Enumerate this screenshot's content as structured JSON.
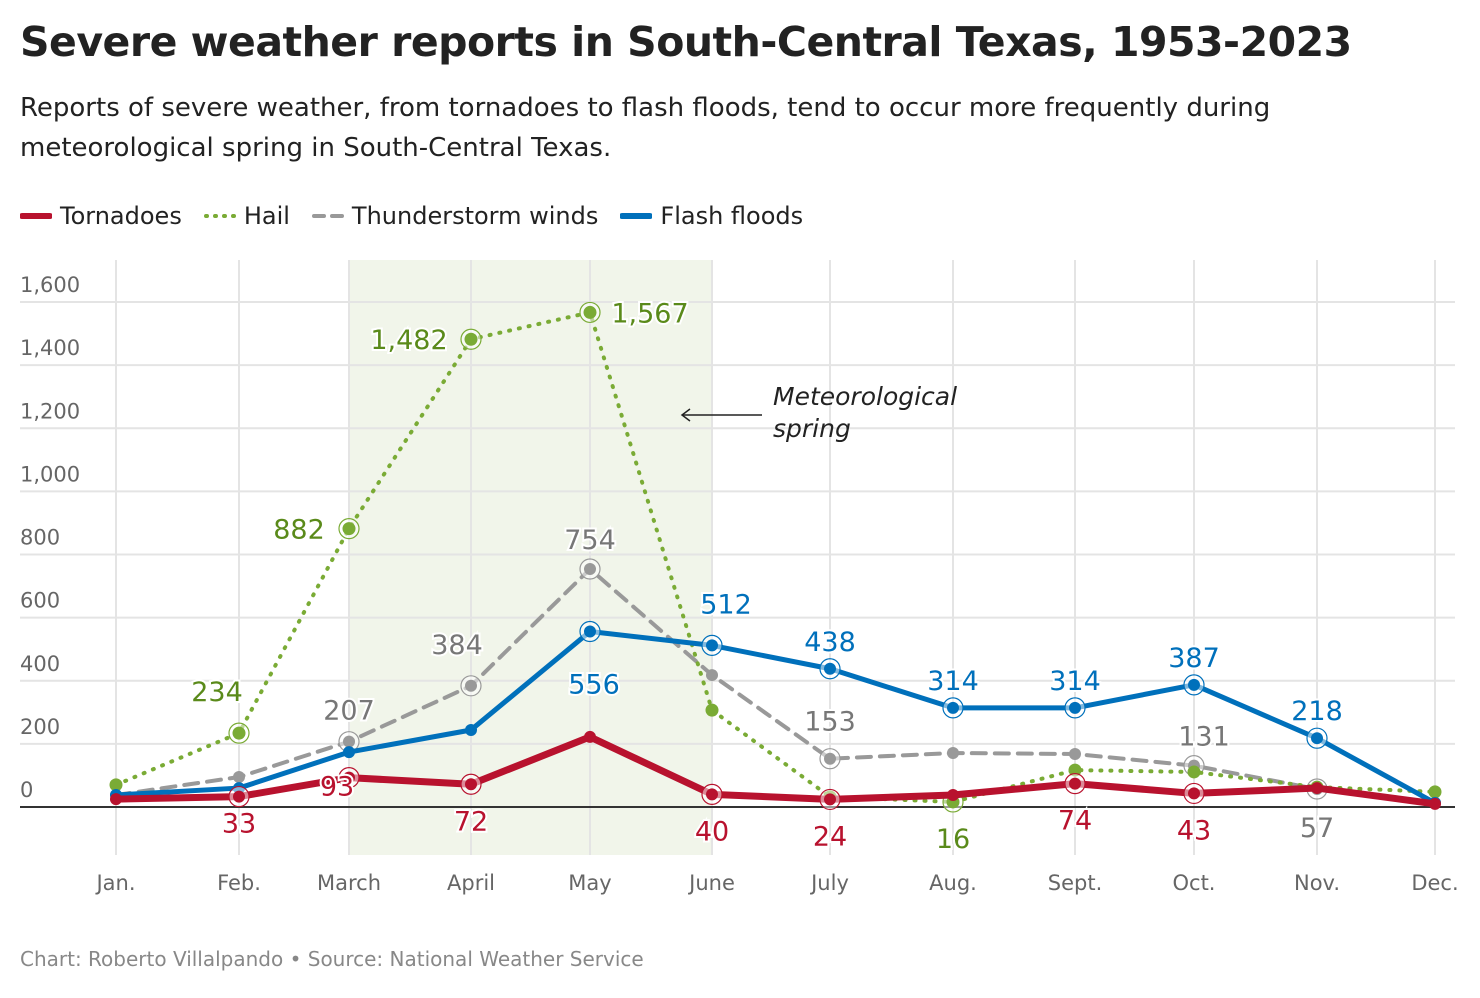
{
  "title": "Severe weather reports in South-Central Texas, 1953-2023",
  "subtitle": "Reports of severe weather, from tornadoes to flash floods, tend to occur more frequently during meteorological spring in South-Central Texas.",
  "footer": "Chart: Roberto Villalpando • Source: National Weather Service",
  "chart_data": {
    "type": "line",
    "categories": [
      "Jan.",
      "Feb.",
      "March",
      "April",
      "May",
      "June",
      "July",
      "Aug.",
      "Sept.",
      "Oct.",
      "Nov.",
      "Dec."
    ],
    "ylim": [
      0,
      1700
    ],
    "yticks": [
      0,
      200,
      400,
      600,
      800,
      1000,
      1200,
      1400,
      1600
    ],
    "ytick_labels": [
      "0",
      "200",
      "400",
      "600",
      "800",
      "1,000",
      "1,200",
      "1,400",
      "1,600"
    ],
    "grid": true,
    "legend_position": "top-left",
    "annotation": {
      "text_lines": [
        "Meteorological",
        "spring"
      ],
      "shaded_range": [
        "March",
        "June"
      ],
      "shade_color": "#f1f5ea"
    },
    "series": [
      {
        "name": "Tornadoes",
        "color": "#b8122e",
        "label_color": "#b8122e",
        "style": "solid",
        "values": [
          25,
          33,
          93,
          72,
          222,
          40,
          24,
          38,
          74,
          43,
          60,
          10
        ],
        "labeled": [
          1,
          2,
          3,
          5,
          6,
          8,
          9
        ]
      },
      {
        "name": "Hail",
        "color": "#7aab35",
        "label_color": "#5a8a1a",
        "style": "dotted",
        "values": [
          70,
          234,
          882,
          1482,
          1567,
          307,
          32,
          16,
          117,
          111,
          63,
          48
        ],
        "labeled": [
          1,
          2,
          3,
          4,
          7
        ]
      },
      {
        "name": "Thunderstorm winds",
        "color": "#999999",
        "label_color": "#777777",
        "style": "dashed",
        "values": [
          38,
          95,
          207,
          384,
          754,
          418,
          153,
          171,
          168,
          131,
          57,
          13
        ],
        "labeled": [
          2,
          3,
          4,
          6,
          9,
          10
        ]
      },
      {
        "name": "Flash floods",
        "color": "#0070bb",
        "label_color": "#0070bb",
        "style": "solid",
        "values": [
          38,
          60,
          174,
          244,
          556,
          512,
          438,
          314,
          314,
          387,
          218,
          13
        ],
        "labeled": [
          4,
          5,
          6,
          7,
          8,
          9,
          10
        ]
      }
    ]
  }
}
